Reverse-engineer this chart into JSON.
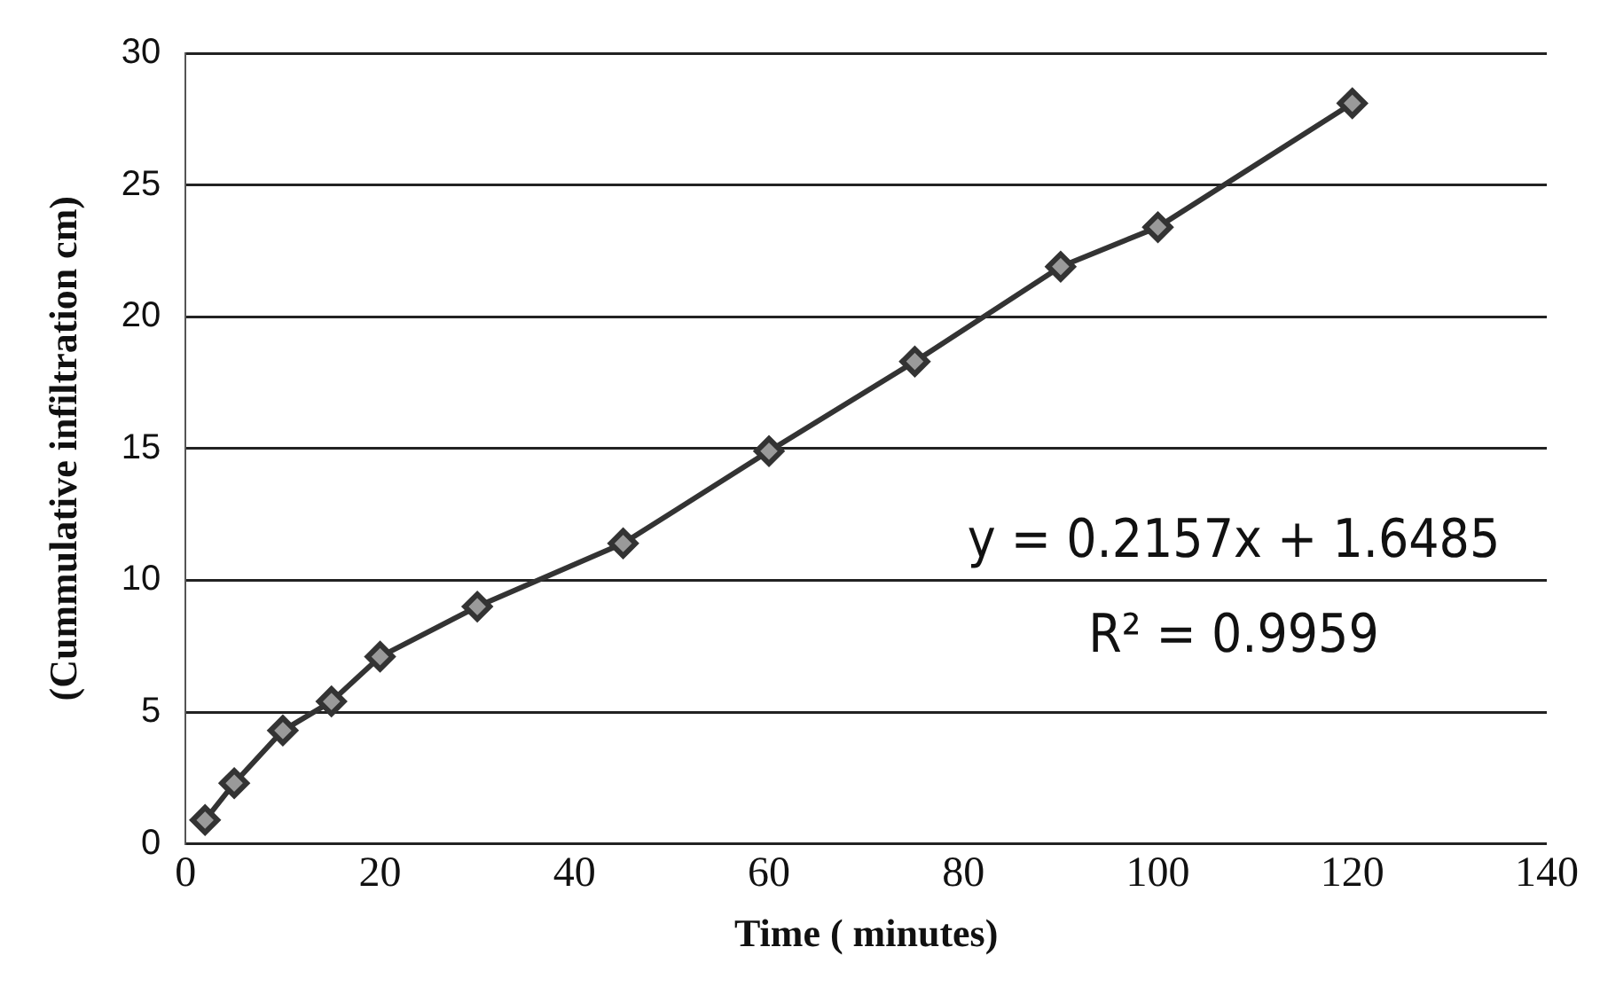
{
  "chart_data": {
    "type": "line",
    "xlabel": "Time ( minutes)",
    "ylabel": "(Cummulative infiltration cm)",
    "x": [
      2,
      5,
      10,
      15,
      20,
      30,
      45,
      60,
      75,
      90,
      100,
      120
    ],
    "series": [
      {
        "color": "#333333",
        "values": [
          0.9,
          2.3,
          4.3,
          5.4,
          7.1,
          9.0,
          11.4,
          14.9,
          18.3,
          21.9,
          23.4,
          28.1
        ]
      }
    ],
    "xlim": [
      0,
      140
    ],
    "xticks": [
      0,
      20,
      40,
      60,
      80,
      100,
      120,
      140
    ],
    "ylim": [
      0,
      30
    ],
    "yticks": [
      0,
      5,
      10,
      15,
      20,
      25,
      30
    ],
    "grid": "y",
    "legend": false,
    "marker": "diamond",
    "line_style": "solid",
    "annotations": [
      "y = 0.2157x + 1.6485",
      "R² = 0.9959"
    ]
  }
}
